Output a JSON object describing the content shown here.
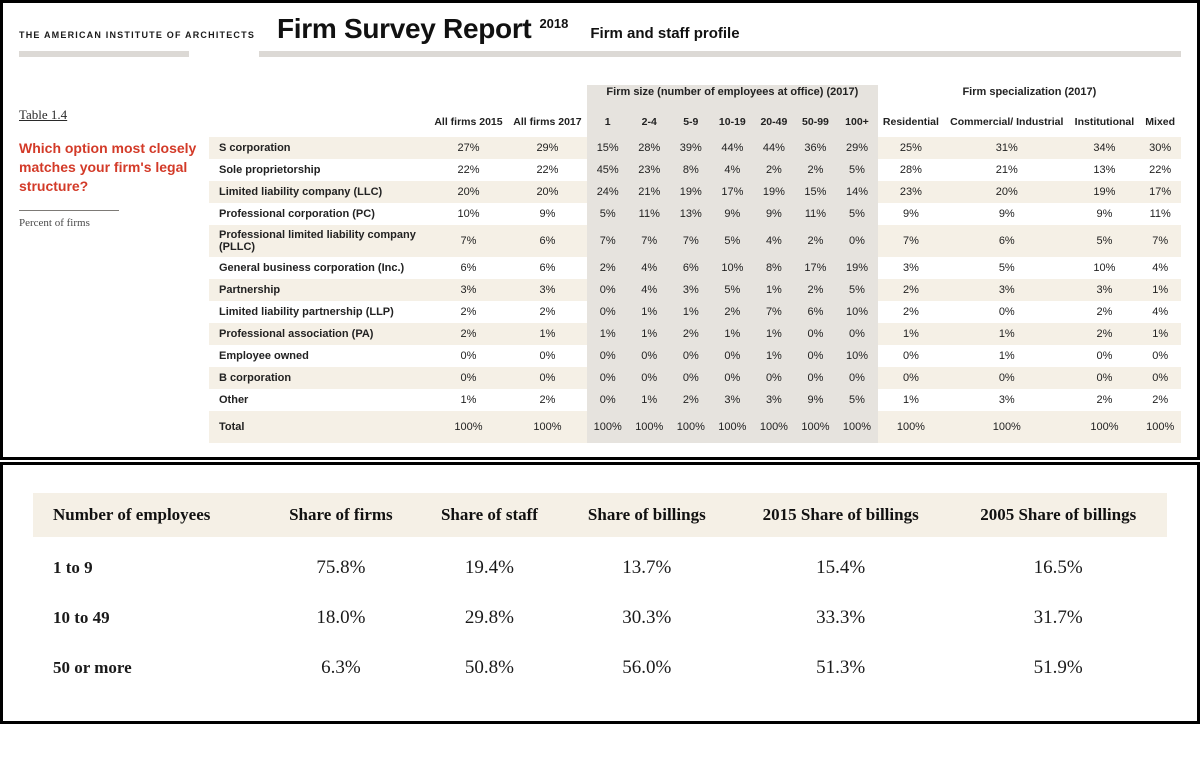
{
  "header": {
    "institute": "THE AMERICAN INSTITUTE OF ARCHITECTS",
    "title": "Firm Survey Report",
    "year": "2018",
    "subtitle": "Firm and staff profile"
  },
  "sidebar": {
    "table_number": "Table 1.4",
    "question": "Which option most closely matches your firm's legal structure?",
    "note": "Percent of firms"
  },
  "table1": {
    "group_size_label": "Firm size (number of employees at office) (2017)",
    "group_spec_label": "Firm specialization (2017)",
    "col_allfirms2015": "All firms 2015",
    "col_allfirms2017": "All firms 2017",
    "size_cols": [
      "1",
      "2-4",
      "5-9",
      "10-19",
      "20-49",
      "50-99",
      "100+"
    ],
    "spec_cols": [
      "Residential",
      "Commercial/ Industrial",
      "Institutional",
      "Mixed"
    ],
    "rows": [
      {
        "label": "S corporation",
        "a15": "27%",
        "a17": "29%",
        "s": [
          "15%",
          "28%",
          "39%",
          "44%",
          "44%",
          "36%",
          "29%"
        ],
        "p": [
          "25%",
          "31%",
          "34%",
          "30%"
        ]
      },
      {
        "label": "Sole proprietorship",
        "a15": "22%",
        "a17": "22%",
        "s": [
          "45%",
          "23%",
          "8%",
          "4%",
          "2%",
          "2%",
          "5%"
        ],
        "p": [
          "28%",
          "21%",
          "13%",
          "22%"
        ]
      },
      {
        "label": "Limited liability company (LLC)",
        "a15": "20%",
        "a17": "20%",
        "s": [
          "24%",
          "21%",
          "19%",
          "17%",
          "19%",
          "15%",
          "14%"
        ],
        "p": [
          "23%",
          "20%",
          "19%",
          "17%"
        ]
      },
      {
        "label": "Professional corporation (PC)",
        "a15": "10%",
        "a17": "9%",
        "s": [
          "5%",
          "11%",
          "13%",
          "9%",
          "9%",
          "11%",
          "5%"
        ],
        "p": [
          "9%",
          "9%",
          "9%",
          "11%"
        ]
      },
      {
        "label": "Professional limited liability company (PLLC)",
        "a15": "7%",
        "a17": "6%",
        "s": [
          "7%",
          "7%",
          "7%",
          "5%",
          "4%",
          "2%",
          "0%"
        ],
        "p": [
          "7%",
          "6%",
          "5%",
          "7%"
        ]
      },
      {
        "label": "General business corporation (Inc.)",
        "a15": "6%",
        "a17": "6%",
        "s": [
          "2%",
          "4%",
          "6%",
          "10%",
          "8%",
          "17%",
          "19%"
        ],
        "p": [
          "3%",
          "5%",
          "10%",
          "4%"
        ]
      },
      {
        "label": "Partnership",
        "a15": "3%",
        "a17": "3%",
        "s": [
          "0%",
          "4%",
          "3%",
          "5%",
          "1%",
          "2%",
          "5%"
        ],
        "p": [
          "2%",
          "3%",
          "3%",
          "1%"
        ]
      },
      {
        "label": "Limited liability partnership (LLP)",
        "a15": "2%",
        "a17": "2%",
        "s": [
          "0%",
          "1%",
          "1%",
          "2%",
          "7%",
          "6%",
          "10%"
        ],
        "p": [
          "2%",
          "0%",
          "2%",
          "4%"
        ]
      },
      {
        "label": "Professional association (PA)",
        "a15": "2%",
        "a17": "1%",
        "s": [
          "1%",
          "1%",
          "2%",
          "1%",
          "1%",
          "0%",
          "0%"
        ],
        "p": [
          "1%",
          "1%",
          "2%",
          "1%"
        ]
      },
      {
        "label": "Employee owned",
        "a15": "0%",
        "a17": "0%",
        "s": [
          "0%",
          "0%",
          "0%",
          "0%",
          "1%",
          "0%",
          "10%"
        ],
        "p": [
          "0%",
          "1%",
          "0%",
          "0%"
        ]
      },
      {
        "label": "B corporation",
        "a15": "0%",
        "a17": "0%",
        "s": [
          "0%",
          "0%",
          "0%",
          "0%",
          "0%",
          "0%",
          "0%"
        ],
        "p": [
          "0%",
          "0%",
          "0%",
          "0%"
        ]
      },
      {
        "label": "Other",
        "a15": "1%",
        "a17": "2%",
        "s": [
          "0%",
          "1%",
          "2%",
          "3%",
          "3%",
          "9%",
          "5%"
        ],
        "p": [
          "1%",
          "3%",
          "2%",
          "2%"
        ]
      }
    ],
    "total": {
      "label": "Total",
      "a15": "100%",
      "a17": "100%",
      "s": [
        "100%",
        "100%",
        "100%",
        "100%",
        "100%",
        "100%",
        "100%"
      ],
      "p": [
        "100%",
        "100%",
        "100%",
        "100%"
      ]
    }
  },
  "table2": {
    "columns": [
      "Number of employees",
      "Share of firms",
      "Share of staff",
      "Share of billings",
      "2015 Share of billings",
      "2005 Share of billings"
    ],
    "rows": [
      [
        "1 to 9",
        "75.8%",
        "19.4%",
        "13.7%",
        "15.4%",
        "16.5%"
      ],
      [
        "10 to 49",
        "18.0%",
        "29.8%",
        "30.3%",
        "33.3%",
        "31.7%"
      ],
      [
        "50 or more",
        "6.3%",
        "50.8%",
        "56.0%",
        "51.3%",
        "51.9%"
      ]
    ]
  },
  "colors": {
    "cream": "#f5f0e6",
    "shade": "#e6e3de",
    "rule": "#dcd9d5",
    "accent": "#d33a28"
  }
}
